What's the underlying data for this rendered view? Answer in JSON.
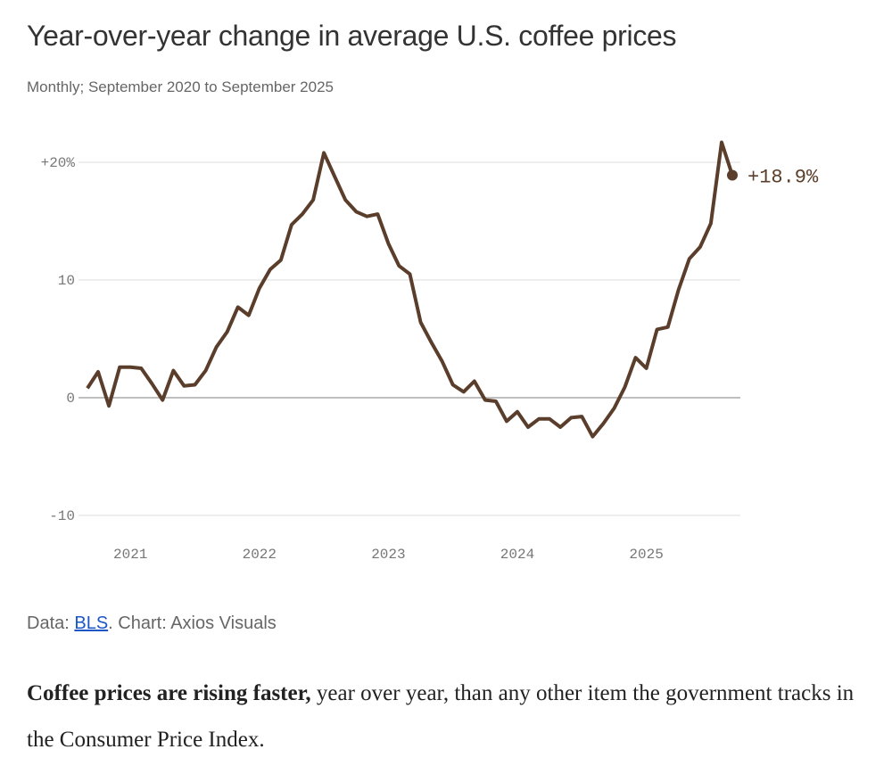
{
  "title": "Year-over-year change in average U.S. coffee prices",
  "subtitle": "Monthly; September 2020 to September 2025",
  "source": {
    "prefix": "Data: ",
    "link": "BLS",
    "suffix": ". Chart: Axios Visuals"
  },
  "paragraph": {
    "bold": "Coffee prices are rising faster,",
    "rest": " year over year, than any other item the government tracks in the Consumer Price Index."
  },
  "chart_data": {
    "type": "line",
    "title": "Year-over-year change in average U.S. coffee prices",
    "subtitle": "Monthly; September 2020 to September 2025",
    "x_start": "2020-09",
    "x_end": "2025-09",
    "x_ticks": [
      "2021",
      "2022",
      "2023",
      "2024",
      "2025"
    ],
    "y_ticks": [
      {
        "value": 20,
        "label": "+20%"
      },
      {
        "value": 10,
        "label": "10"
      },
      {
        "value": 0,
        "label": "0"
      },
      {
        "value": -10,
        "label": "-10"
      }
    ],
    "ylim": [
      -10,
      22
    ],
    "grid": true,
    "line_color": "#5a3e2b",
    "end_label": "+18.9%",
    "values": [
      0.8,
      2.2,
      -0.7,
      2.6,
      2.6,
      2.5,
      1.2,
      -0.2,
      2.3,
      1.0,
      1.1,
      2.3,
      4.3,
      5.6,
      7.7,
      7.0,
      9.3,
      10.9,
      11.7,
      14.7,
      15.6,
      16.8,
      20.8,
      18.8,
      16.8,
      15.8,
      15.4,
      15.6,
      13.1,
      11.2,
      10.5,
      6.4,
      4.7,
      3.1,
      1.1,
      0.5,
      1.4,
      -0.2,
      -0.3,
      -2.0,
      -1.2,
      -2.5,
      -1.8,
      -1.8,
      -2.5,
      -1.7,
      -1.6,
      -3.3,
      -2.2,
      -0.9,
      0.9,
      3.4,
      2.5,
      5.8,
      6.0,
      9.2,
      11.8,
      12.8,
      14.8,
      21.7,
      18.9
    ]
  }
}
